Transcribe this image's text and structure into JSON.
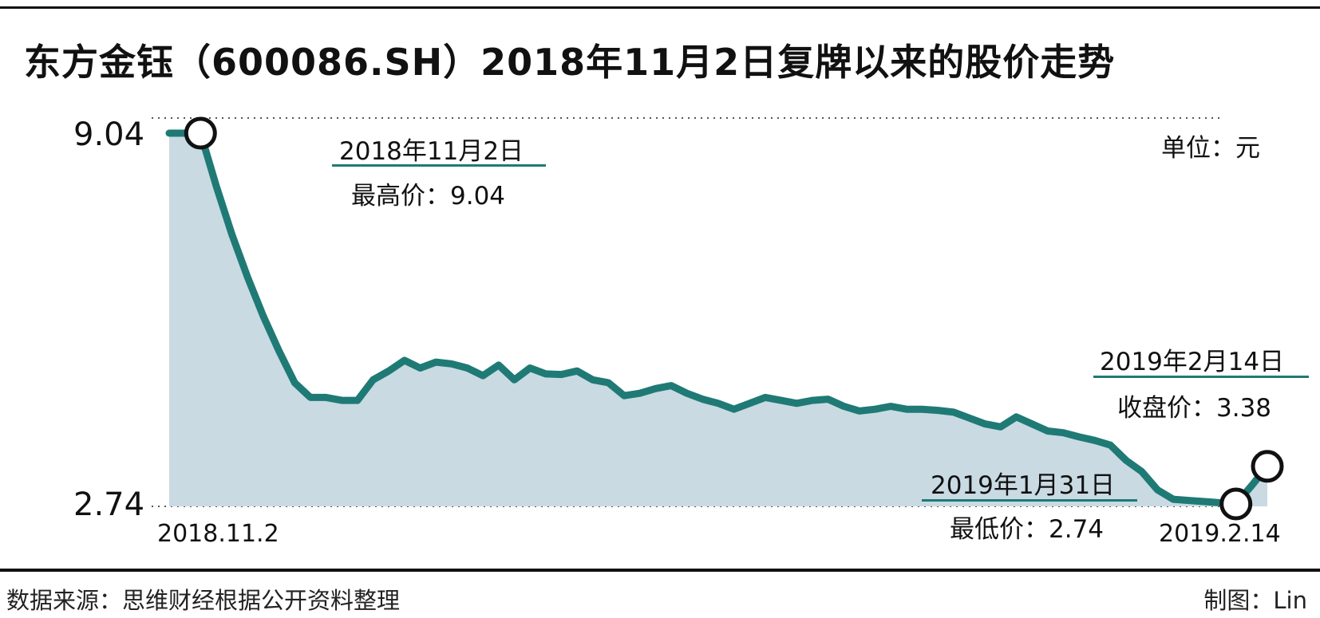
{
  "chart_data": {
    "type": "area",
    "title": "东方金钰（600086.SH）2018年11月2日复牌以来的股价走势",
    "unit_label": "单位：元",
    "y_ticks": [
      "9.04",
      "2.74"
    ],
    "x_ticks": [
      "2018.11.2",
      "2019.2.14"
    ],
    "ylim": [
      2.74,
      9.04
    ],
    "grid": "dotted lines at 9.04 and 2.74",
    "series": [
      {
        "values": [
          9.04,
          9.04,
          9.04,
          8.14,
          7.32,
          6.59,
          5.93,
          5.34,
          4.8,
          4.55,
          4.55,
          4.5,
          4.5,
          4.85,
          5.0,
          5.18,
          5.05,
          5.15,
          5.12,
          5.05,
          4.92,
          5.1,
          4.85,
          5.05,
          4.95,
          4.94,
          5.0,
          4.85,
          4.8,
          4.58,
          4.62,
          4.7,
          4.75,
          4.62,
          4.52,
          4.45,
          4.35,
          4.45,
          4.55,
          4.5,
          4.45,
          4.5,
          4.52,
          4.4,
          4.32,
          4.35,
          4.4,
          4.35,
          4.35,
          4.33,
          4.3,
          4.2,
          4.1,
          4.05,
          4.22,
          4.1,
          3.98,
          3.95,
          3.88,
          3.82,
          3.74,
          3.48,
          3.29,
          2.98,
          2.82,
          2.8,
          2.78,
          2.76,
          2.74,
          3.05,
          3.38
        ]
      }
    ],
    "annotations": [
      {
        "date": "2018年11月2日",
        "label": "最高价：9.04"
      },
      {
        "date": "2019年2月14日",
        "label": "收盘价：3.38"
      },
      {
        "date": "2019年1月31日",
        "label": "最低价：2.74"
      }
    ]
  },
  "footer": {
    "source": "数据来源：思维财经根据公开资料整理",
    "credit": "制图：Lin"
  },
  "colors": {
    "line": "#1f7a75",
    "fill": "#c9dae3",
    "marker_fill": "#ffffff",
    "marker_stroke": "#111111"
  }
}
